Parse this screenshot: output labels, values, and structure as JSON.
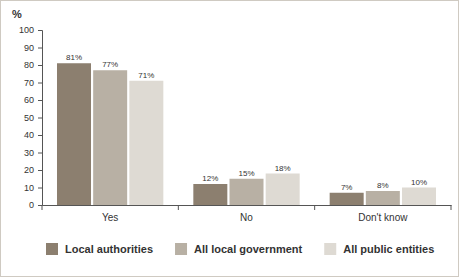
{
  "chart_data": {
    "type": "bar",
    "ylabel": "%",
    "categories": [
      "Yes",
      "No",
      "Don't know"
    ],
    "series": [
      {
        "name": "Local authorities",
        "color": "#8c7f6f",
        "values": [
          81,
          12,
          7
        ],
        "value_labels": [
          "81%",
          "12%",
          "7%"
        ]
      },
      {
        "name": "All local government",
        "color": "#b8b0a4",
        "values": [
          77,
          15,
          8
        ],
        "value_labels": [
          "77%",
          "15%",
          "8%"
        ]
      },
      {
        "name": "All public entities",
        "color": "#dedad3",
        "values": [
          71,
          18,
          10
        ],
        "value_labels": [
          "71%",
          "18%",
          "10%"
        ]
      }
    ],
    "ylim": [
      0,
      100
    ],
    "yticks": [
      0,
      10,
      20,
      30,
      40,
      50,
      60,
      70,
      80,
      90,
      100
    ],
    "grid": false,
    "legend": "bottom",
    "data_labels": true
  }
}
